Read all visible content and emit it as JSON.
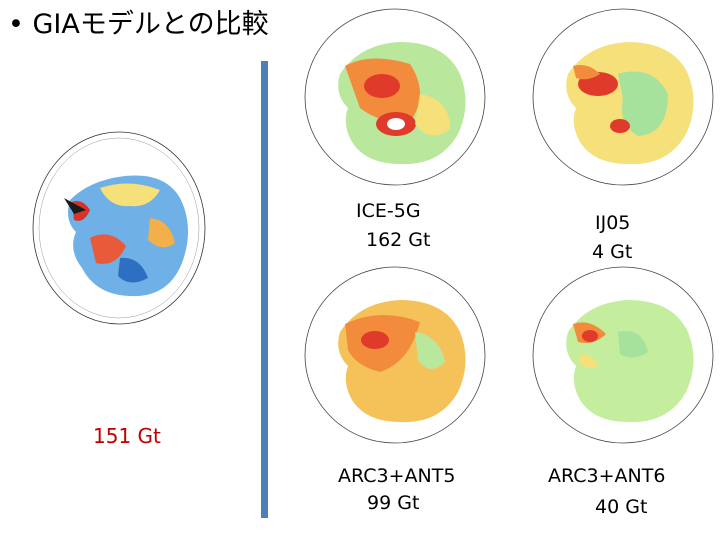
{
  "slide": {
    "title": "• GIAモデルとの比較",
    "left_map": {
      "result": "151 Gt"
    },
    "models": [
      {
        "name": "ICE-5G",
        "value": "162 Gt"
      },
      {
        "name": "IJ05",
        "value": "4 Gt"
      },
      {
        "name": "ARC3+ANT5",
        "value": "99 Gt"
      },
      {
        "name": "ARC3+ANT6",
        "value": "40 Gt"
      }
    ]
  },
  "colors": {
    "divider": "#4f7fb8",
    "result_text": "#c00000",
    "map_red": "#e03a2a",
    "map_orange": "#f28c3c",
    "map_yellow": "#f5e07a",
    "map_green": "#b7e89a",
    "map_blue": "#4a90d9"
  }
}
